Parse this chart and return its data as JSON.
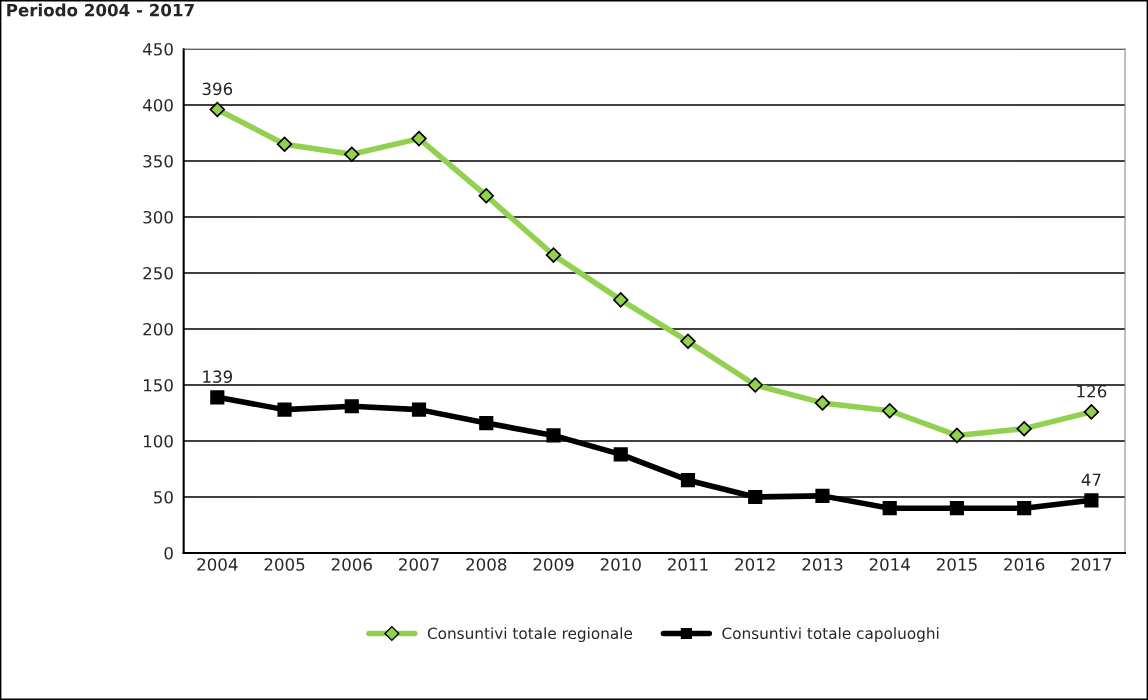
{
  "chart_data": {
    "type": "line",
    "title": "Periodo 2004 - 2017",
    "categories": [
      "2004",
      "2005",
      "2006",
      "2007",
      "2008",
      "2009",
      "2010",
      "2011",
      "2012",
      "2013",
      "2014",
      "2015",
      "2016",
      "2017"
    ],
    "series": [
      {
        "name": "Consuntivi totale regionale",
        "color": "#92d050",
        "marker": "diamond",
        "values": [
          396,
          365,
          356,
          370,
          319,
          266,
          226,
          189,
          150,
          134,
          127,
          105,
          111,
          126
        ],
        "value_labels": [
          "396",
          null,
          null,
          null,
          null,
          null,
          null,
          null,
          null,
          null,
          null,
          null,
          null,
          "126"
        ]
      },
      {
        "name": "Consuntivi totale capoluoghi",
        "color": "#000000",
        "marker": "square",
        "values": [
          139,
          128,
          131,
          128,
          116,
          105,
          88,
          65,
          50,
          51,
          40,
          40,
          40,
          47
        ],
        "value_labels": [
          "139",
          null,
          null,
          null,
          null,
          null,
          null,
          null,
          null,
          null,
          null,
          null,
          null,
          "47"
        ]
      }
    ],
    "ylim": [
      0,
      450
    ],
    "yticks": [
      0,
      50,
      100,
      150,
      200,
      250,
      300,
      350,
      400,
      450
    ],
    "grid": "y",
    "legend": "bottom",
    "line_style": "solid"
  }
}
